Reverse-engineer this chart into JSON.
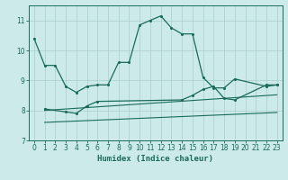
{
  "background_color": "#cceaea",
  "grid_color": "#aacccc",
  "line_color": "#1a6b5a",
  "xlabel": "Humidex (Indice chaleur)",
  "xlim": [
    -0.5,
    23.5
  ],
  "ylim": [
    7,
    11.5
  ],
  "yticks": [
    7,
    8,
    9,
    10,
    11
  ],
  "xticks": [
    0,
    1,
    2,
    3,
    4,
    5,
    6,
    7,
    8,
    9,
    10,
    11,
    12,
    13,
    14,
    15,
    16,
    17,
    18,
    19,
    20,
    21,
    22,
    23
  ],
  "series1_x": [
    0,
    1,
    2,
    3,
    4,
    5,
    6,
    7,
    8,
    9,
    10,
    11,
    12,
    13,
    14,
    15,
    16,
    17,
    18,
    19,
    22,
    23
  ],
  "series1_y": [
    10.4,
    9.5,
    9.5,
    8.8,
    8.6,
    8.8,
    8.85,
    8.85,
    9.6,
    9.6,
    10.85,
    11.0,
    11.15,
    10.75,
    10.55,
    10.55,
    9.1,
    8.75,
    8.75,
    9.05,
    8.8,
    8.85
  ],
  "series2_x": [
    1,
    3,
    4,
    5,
    6,
    14,
    15,
    16,
    17,
    18,
    19,
    22,
    23
  ],
  "series2_y": [
    8.05,
    7.95,
    7.9,
    8.15,
    8.3,
    8.35,
    8.5,
    8.7,
    8.8,
    8.4,
    8.35,
    8.85,
    8.85
  ],
  "line3_x": [
    1,
    23
  ],
  "line3_y": [
    8.0,
    8.52
  ],
  "line4_x": [
    1,
    23
  ],
  "line4_y": [
    7.6,
    7.93
  ]
}
